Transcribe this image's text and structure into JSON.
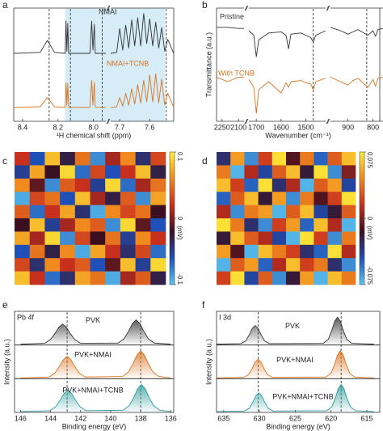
{
  "chart_data": [
    {
      "panel": "a",
      "type": "line",
      "xlabel": "¹H chemical shift (ppm)",
      "xlim": [
        8.45,
        7.52
      ],
      "xbreaks": [
        [
          7.93,
          7.73
        ]
      ],
      "xticks": [
        8.4,
        8.2,
        {
          "value": 8,
          "label": "8.0"
        },
        7.7,
        7.6
      ],
      "ylim": [
        0,
        10.5
      ],
      "highlight_range": [
        8.16,
        7.55
      ],
      "highlight_color": "#d6edf8",
      "reference_lines": [
        8.25,
        8.13,
        7.95,
        7.545
      ],
      "x": [
        8.45,
        8.3,
        8.26,
        8.22,
        8.16,
        8.155,
        8.15,
        8.145,
        8.14,
        8.02,
        8.01,
        8.003,
        7.995,
        7.99,
        7.93,
        7.84,
        7.73,
        7.71,
        7.7,
        7.69,
        7.68,
        7.67,
        7.66,
        7.65,
        7.64,
        7.63,
        7.62,
        7.61,
        7.6,
        7.59,
        7.58,
        7.57,
        7.56,
        7.55,
        7.54,
        7.52
      ],
      "series": [
        {
          "name": "NMAI",
          "color": "#333333",
          "values": [
            6.3,
            6.4,
            7.5,
            6.4,
            6.3,
            9.3,
            6.5,
            9.1,
            6.3,
            6.3,
            9.3,
            6.6,
            9.0,
            6.3,
            6.3,
            null,
            6.3,
            6.4,
            8.6,
            6.6,
            8.9,
            6.8,
            9.4,
            7.0,
            9.6,
            7.0,
            10,
            7.2,
            9.5,
            7.0,
            9.2,
            6.8,
            8.7,
            6.5,
            7.6,
            6.3
          ]
        },
        {
          "name": "NMAI+TCNB",
          "color": "#d9731f",
          "values": [
            1.3,
            1.35,
            2.2,
            1.35,
            1.3,
            3.6,
            1.5,
            3.5,
            1.3,
            1.3,
            3.8,
            1.5,
            3.6,
            1.3,
            1.3,
            null,
            1.3,
            1.35,
            2.2,
            1.4,
            2.6,
            1.5,
            3.0,
            1.6,
            3.4,
            1.7,
            3.8,
            1.8,
            4.3,
            1.8,
            4.4,
            1.7,
            3.9,
            1.5,
            2.6,
            1.3
          ]
        }
      ]
    },
    {
      "panel": "b",
      "type": "line",
      "xlabel": "Wavenumber (cm⁻¹)",
      "ylabel": "Transmittance (a.u.)",
      "xlim": [
        2300,
        760
      ],
      "xbreaks": [
        [
          2050,
          1730
        ],
        [
          1420,
          970
        ]
      ],
      "xticks": [
        2250,
        2100,
        1700,
        1600,
        1500,
        900,
        800
      ],
      "ylim": [
        0,
        10
      ],
      "reference_lines": [
        1470,
        825
      ],
      "x": [
        2300,
        2200,
        2100,
        2050,
        1900,
        1730,
        1710,
        1700,
        1690,
        1650,
        1600,
        1580,
        1570,
        1560,
        1520,
        1500,
        1480,
        1470,
        1460,
        1420,
        1200,
        970,
        930,
        900,
        880,
        860,
        820,
        800,
        790,
        780,
        760
      ],
      "series": [
        {
          "name": "Pristine",
          "color": "#333333",
          "values": [
            8.3,
            8.3,
            8.2,
            8.2,
            null,
            8.0,
            7.6,
            5.7,
            7.2,
            7.8,
            7.9,
            7.6,
            6.4,
            7.7,
            7.8,
            7.6,
            7.4,
            7.0,
            7.6,
            8.0,
            null,
            8.3,
            8.0,
            7.7,
            7.9,
            8.1,
            7.6,
            8.0,
            7.5,
            8.1,
            8.2
          ]
        },
        {
          "name": "With TCNB",
          "color": "#d9731f",
          "values": [
            3.9,
            3.5,
            3.9,
            3.9,
            null,
            3.7,
            3.0,
            0.7,
            2.8,
            3.5,
            2.5,
            3.4,
            3.0,
            3.5,
            3.6,
            3.4,
            3.3,
            2.8,
            3.5,
            3.8,
            null,
            3.9,
            3.5,
            3.2,
            3.6,
            3.8,
            3.0,
            3.7,
            3.1,
            3.8,
            3.9
          ]
        }
      ]
    },
    {
      "panel": "c",
      "type": "heatmap",
      "zlim": [
        -0.1,
        0.1
      ],
      "colorbar_ticks": [
        0.1,
        0,
        -0.1
      ],
      "colorbar_label": "(mV)",
      "colors": [
        "#5cc8f0",
        "#1f4fb8",
        "#3a1020",
        "#c8301e",
        "#f08a1e",
        "#fff03a"
      ],
      "z": [
        [
          0.02,
          -0.06,
          0.08,
          -0.03,
          0.05,
          -0.08,
          0.01,
          0.06,
          -0.04,
          0.03
        ],
        [
          -0.05,
          0.07,
          -0.02,
          0.09,
          -0.07,
          0.03,
          -0.06,
          0.02,
          0.08,
          -0.03
        ],
        [
          0.06,
          -0.01,
          -0.08,
          0.04,
          0.02,
          -0.05,
          0.09,
          -0.07,
          0.01,
          0.05
        ],
        [
          -0.09,
          0.03,
          0.05,
          -0.06,
          0.08,
          0.01,
          -0.03,
          0.04,
          -0.08,
          0.07
        ],
        [
          0.04,
          -0.07,
          0.02,
          0.07,
          -0.04,
          -0.09,
          0.06,
          0.03,
          0.05,
          -0.02
        ],
        [
          -0.02,
          0.08,
          -0.05,
          0.01,
          0.06,
          0.04,
          -0.08,
          0.09,
          -0.01,
          -0.06
        ],
        [
          0.07,
          0.01,
          0.09,
          -0.08,
          0.03,
          -0.02,
          0.05,
          -0.05,
          0.06,
          0.02
        ],
        [
          -0.06,
          0.05,
          -0.03,
          0.06,
          -0.09,
          0.07,
          0.02,
          -0.04,
          0.03,
          -0.07
        ],
        [
          0.03,
          -0.04,
          0.06,
          0.02,
          0.04,
          -0.06,
          -0.01,
          0.08,
          -0.05,
          0.09
        ],
        [
          0.08,
          0.02,
          -0.07,
          -0.04,
          0.07,
          0.05,
          -0.09,
          0.01,
          0.04,
          -0.03
        ]
      ]
    },
    {
      "panel": "d",
      "type": "heatmap",
      "zlim": [
        -0.075,
        0.075
      ],
      "colorbar_ticks": [
        0.075,
        0,
        -0.075
      ],
      "colorbar_label": "(mV)",
      "colors": [
        "#5cc8f0",
        "#1f4fb8",
        "#3a1020",
        "#c8301e",
        "#f08a1e",
        "#fff03a"
      ],
      "z": [
        [
          -0.03,
          0.05,
          -0.06,
          0.02,
          0.07,
          -0.01,
          0.04,
          -0.05,
          0.03,
          0.06
        ],
        [
          0.04,
          -0.07,
          0.01,
          -0.04,
          0.03,
          0.06,
          -0.02,
          0.07,
          -0.06,
          0
        ],
        [
          0.06,
          0.02,
          -0.05,
          0.07,
          -0.03,
          0.01,
          -0.07,
          0.03,
          0.05,
          -0.04
        ],
        [
          -0.05,
          0.03,
          0.06,
          -0.02,
          0.05,
          -0.06,
          0.04,
          -0.01,
          0.02,
          0.07
        ],
        [
          0.01,
          -0.06,
          0.04,
          0.05,
          -0.07,
          0.03,
          0.06,
          -0.04,
          -0.02,
          0.03
        ],
        [
          0.07,
          0.04,
          -0.03,
          -0.06,
          0.02,
          0.05,
          -0.05,
          0.06,
          0.01,
          -0.07
        ],
        [
          -0.02,
          0.06,
          0.03,
          0.01,
          -0.04,
          -0.07,
          0.07,
          0.02,
          -0.06,
          0.04
        ],
        [
          0.05,
          -0.01,
          -0.07,
          0.06,
          0.04,
          0.02,
          -0.03,
          -0.05,
          0.07,
          0.01
        ],
        [
          -0.07,
          0.03,
          0.05,
          -0.05,
          0.01,
          0.06,
          0.02,
          0.04,
          -0.03,
          -0.06
        ],
        [
          0.02,
          0.07,
          -0.04,
          0.03,
          -0.06,
          -0.02,
          0.05,
          -0.07,
          0.06,
          0.04
        ]
      ]
    },
    {
      "panel": "e",
      "type": "line",
      "layout": "stacked",
      "title": "Pb 4f",
      "xlabel": "Binding energy (eV)",
      "ylabel": "Intensity (a.u.)",
      "xlim": [
        146.4,
        135.8
      ],
      "xticks": [
        146,
        144,
        142,
        140,
        138,
        136
      ],
      "ylim": [
        0,
        1.15
      ],
      "reference_lines": [
        142.9,
        138
      ],
      "series": [
        {
          "name": "PVK",
          "color": "#333333",
          "x": [
            146,
            144.4,
            144.0,
            143.7,
            143.45,
            143.2,
            142.95,
            142.7,
            142.4,
            142.0,
            139.5,
            139.1,
            138.8,
            138.55,
            138.3,
            138.05,
            137.8,
            137.5,
            137.1,
            136
          ],
          "values": [
            0.03,
            0.06,
            0.2,
            0.42,
            0.64,
            0.75,
            0.64,
            0.42,
            0.2,
            0.06,
            0.07,
            0.23,
            0.5,
            0.77,
            0.9,
            0.77,
            0.5,
            0.23,
            0.07,
            0.03
          ]
        },
        {
          "name": "PVK+NMAI",
          "color": "#d9731f",
          "x": [
            146,
            144.1,
            143.7,
            143.4,
            143.15,
            142.9,
            142.65,
            142.4,
            142.1,
            141.7,
            139.2,
            138.8,
            138.5,
            138.25,
            138,
            137.75,
            137.5,
            137.2,
            136.8,
            136
          ],
          "values": [
            0.03,
            0.06,
            0.21,
            0.45,
            0.68,
            0.8,
            0.68,
            0.45,
            0.21,
            0.06,
            0.08,
            0.25,
            0.55,
            0.85,
            1.0,
            0.85,
            0.55,
            0.25,
            0.08,
            0.03
          ]
        },
        {
          "name": "PVK+NMAI+TCNB",
          "color": "#2e9c9c",
          "x": [
            146,
            144.05,
            143.65,
            143.35,
            143.1,
            142.85,
            142.6,
            142.35,
            142.05,
            141.65,
            139.15,
            138.75,
            138.45,
            138.2,
            137.95,
            137.7,
            137.45,
            137.15,
            136.75,
            136
          ],
          "values": [
            0.03,
            0.06,
            0.21,
            0.45,
            0.68,
            0.8,
            0.68,
            0.45,
            0.21,
            0.06,
            0.08,
            0.25,
            0.55,
            0.85,
            1.0,
            0.85,
            0.55,
            0.25,
            0.08,
            0.03
          ]
        }
      ]
    },
    {
      "panel": "f",
      "type": "line",
      "layout": "stacked",
      "title": "I 3d",
      "xlabel": "Binding energy (eV)",
      "ylabel": "Intensity (a.u.)",
      "xlim": [
        636,
        613.2
      ],
      "xticks": [
        635,
        630,
        625,
        620,
        615
      ],
      "ylim": [
        0,
        1.15
      ],
      "reference_lines": [
        630.2,
        618.6
      ],
      "series": [
        {
          "name": "PVK",
          "color": "#333333",
          "x": [
            636,
            632.6,
            631.9,
            631.4,
            631.0,
            630.6,
            630.2,
            629.8,
            629.3,
            628.6,
            621.1,
            620.4,
            619.9,
            619.5,
            619.1,
            618.7,
            618.3,
            617.8,
            617.1,
            614
          ],
          "values": [
            0.03,
            0.05,
            0.15,
            0.38,
            0.6,
            0.7,
            0.6,
            0.38,
            0.15,
            0.05,
            0.06,
            0.2,
            0.52,
            0.85,
            1.0,
            0.85,
            0.52,
            0.2,
            0.06,
            0.03
          ]
        },
        {
          "name": "PVK+NMAI",
          "color": "#d9731f",
          "x": [
            636,
            632.2,
            631.5,
            631.0,
            630.6,
            630.2,
            629.8,
            629.4,
            628.9,
            628.2,
            620.7,
            620.0,
            619.5,
            619.1,
            618.7,
            618.3,
            617.9,
            617.4,
            616.7,
            614
          ],
          "values": [
            0.03,
            0.05,
            0.15,
            0.38,
            0.6,
            0.7,
            0.6,
            0.38,
            0.15,
            0.05,
            0.06,
            0.2,
            0.52,
            0.85,
            1.0,
            0.85,
            0.52,
            0.2,
            0.06,
            0.03
          ]
        },
        {
          "name": "PVK+NMAI+TCNB",
          "color": "#2e9c9c",
          "x": [
            636,
            632.1,
            631.4,
            630.9,
            630.5,
            630.1,
            629.7,
            629.3,
            628.8,
            628.1,
            620.6,
            619.9,
            619.4,
            619.0,
            618.6,
            618.2,
            617.8,
            617.3,
            616.6,
            614
          ],
          "values": [
            0.03,
            0.05,
            0.15,
            0.38,
            0.6,
            0.7,
            0.6,
            0.38,
            0.15,
            0.05,
            0.06,
            0.2,
            0.52,
            0.85,
            1.0,
            0.85,
            0.52,
            0.2,
            0.06,
            0.03
          ]
        }
      ]
    }
  ]
}
